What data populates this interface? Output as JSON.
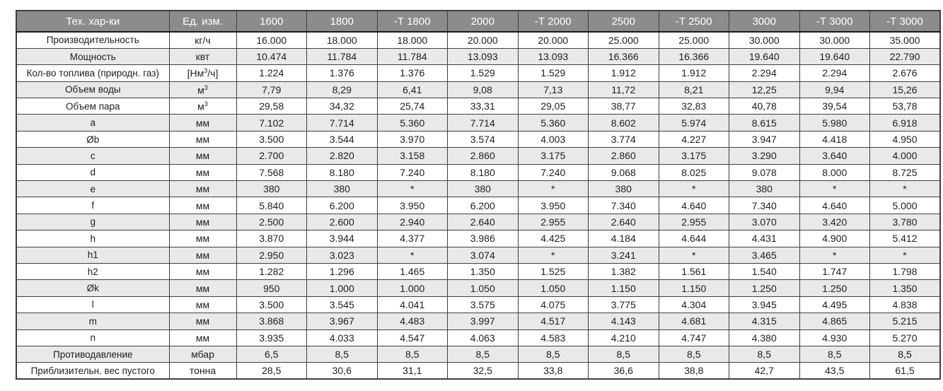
{
  "colors": {
    "header_bg": "#8c8c8c",
    "header_text": "#ffffff",
    "stripe_bg": "#e9e9e9",
    "border": "#3f3f3f",
    "cell_text": "#1f1f1f"
  },
  "table": {
    "columns": [
      "Тех. хар-ки",
      "Ед. изм.",
      "1600",
      "1800",
      "-Т 1800",
      "2000",
      "-Т 2000",
      "2500",
      "-Т 2500",
      "3000",
      "-Т 3000",
      "-Т 3000"
    ],
    "rows": [
      {
        "label": "Производительность",
        "unit": "кг/ч",
        "values": [
          "16.000",
          "18.000",
          "18.000",
          "20.000",
          "20.000",
          "25.000",
          "25.000",
          "30.000",
          "30.000",
          "35.000"
        ]
      },
      {
        "label": "Мощность",
        "unit": "квт",
        "values": [
          "10.474",
          "11.784",
          "11.784",
          "13.093",
          "13.093",
          "16.366",
          "16.366",
          "19.640",
          "19.640",
          "22.790"
        ]
      },
      {
        "label": "Кол-во топлива (природн. газ)",
        "unit": "[Нм³/ч]",
        "values": [
          "1.224",
          "1.376",
          "1.376",
          "1.529",
          "1.529",
          "1.912",
          "1.912",
          "2.294",
          "2.294",
          "2.676"
        ]
      },
      {
        "label": "Объем воды",
        "unit": "м³",
        "values": [
          "7,79",
          "8,29",
          "6,41",
          "9,08",
          "7,13",
          "11,72",
          "8,21",
          "12,25",
          "9,94",
          "15,26"
        ]
      },
      {
        "label": "Объем пара",
        "unit": "м³",
        "values": [
          "29,58",
          "34,32",
          "25,74",
          "33,31",
          "29,05",
          "38,77",
          "32,83",
          "40,78",
          "39,54",
          "53,78"
        ]
      },
      {
        "label": "a",
        "unit": "мм",
        "values": [
          "7.102",
          "7.714",
          "5.360",
          "7.714",
          "5.360",
          "8.602",
          "5.974",
          "8.615",
          "5.980",
          "6.918"
        ]
      },
      {
        "label": "Øb",
        "unit": "мм",
        "values": [
          "3.500",
          "3.544",
          "3.970",
          "3.574",
          "4.003",
          "3.774",
          "4.227",
          "3.947",
          "4.418",
          "4.950"
        ]
      },
      {
        "label": "c",
        "unit": "мм",
        "values": [
          "2.700",
          "2.820",
          "3.158",
          "2.860",
          "3.175",
          "2.860",
          "3.175",
          "3.290",
          "3.640",
          "4.000"
        ]
      },
      {
        "label": "d",
        "unit": "мм",
        "values": [
          "7.568",
          "8.180",
          "7.240",
          "8.180",
          "7.240",
          "9.068",
          "8.025",
          "9.078",
          "8.000",
          "8.725"
        ]
      },
      {
        "label": "e",
        "unit": "мм",
        "values": [
          "380",
          "380",
          "*",
          "380",
          "*",
          "380",
          "*",
          "380",
          "*",
          "*"
        ]
      },
      {
        "label": "f",
        "unit": "мм",
        "values": [
          "5.840",
          "6.200",
          "3.950",
          "6.200",
          "3.950",
          "7.340",
          "4.640",
          "7.340",
          "4.640",
          "5.000"
        ]
      },
      {
        "label": "g",
        "unit": "мм",
        "values": [
          "2.500",
          "2.600",
          "2.940",
          "2.640",
          "2.955",
          "2.640",
          "2.955",
          "3.070",
          "3.420",
          "3.780"
        ]
      },
      {
        "label": "h",
        "unit": "мм",
        "values": [
          "3.870",
          "3.944",
          "4.377",
          "3.986",
          "4.425",
          "4.184",
          "4.644",
          "4.431",
          "4.900",
          "5.412"
        ]
      },
      {
        "label": "h1",
        "unit": "мм",
        "values": [
          "2.950",
          "3.023",
          "*",
          "3.074",
          "*",
          "3.241",
          "*",
          "3.465",
          "*",
          "*"
        ]
      },
      {
        "label": "h2",
        "unit": "мм",
        "values": [
          "1.282",
          "1.296",
          "1.465",
          "1.350",
          "1.525",
          "1.382",
          "1.561",
          "1.540",
          "1.747",
          "1.798"
        ]
      },
      {
        "label": "Øk",
        "unit": "мм",
        "values": [
          "950",
          "1.000",
          "1.000",
          "1.050",
          "1.050",
          "1.150",
          "1.150",
          "1.250",
          "1.250",
          "1.350"
        ]
      },
      {
        "label": "l",
        "unit": "мм",
        "values": [
          "3.500",
          "3.545",
          "4.041",
          "3.575",
          "4.075",
          "3.775",
          "4.304",
          "3.945",
          "4.495",
          "4.838"
        ]
      },
      {
        "label": "m",
        "unit": "мм",
        "values": [
          "3.868",
          "3.967",
          "4.483",
          "3.997",
          "4.517",
          "4.143",
          "4.681",
          "4.315",
          "4.865",
          "5.215"
        ]
      },
      {
        "label": "n",
        "unit": "мм",
        "values": [
          "3.935",
          "4.033",
          "4.547",
          "4.063",
          "4.583",
          "4.210",
          "4.747",
          "4.380",
          "4.930",
          "5.270"
        ]
      },
      {
        "label": "Противодавление",
        "unit": "мбар",
        "values": [
          "6,5",
          "8,5",
          "8,5",
          "8,5",
          "8,5",
          "8,5",
          "8,5",
          "8,5",
          "8,5",
          "8,5"
        ]
      },
      {
        "label": "Приблизительн. вес пустого",
        "unit": "тонна",
        "values": [
          "28,5",
          "30,6",
          "31,1",
          "32,5",
          "33,8",
          "36,6",
          "38,8",
          "42,7",
          "43,5",
          "61,5"
        ]
      }
    ]
  }
}
